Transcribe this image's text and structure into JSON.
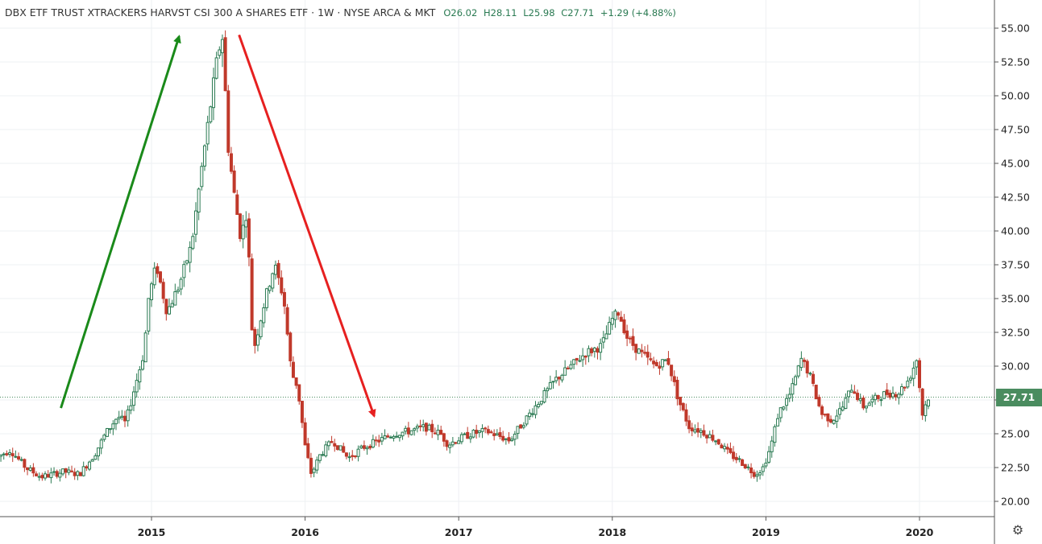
{
  "header": {
    "title": "DBX ETF TRUST XTRACKERS HARVST CSI 300 A SHARES ETF · 1W · NYSE ARCA & MKT",
    "open": "O26.02",
    "high": "H28.11",
    "low": "L25.98",
    "close": "C27.71",
    "change": "+1.29 (+4.88%)"
  },
  "last_price_label": "27.71",
  "settings_icon": "gear-icon",
  "colors": {
    "up": "#2a7a52",
    "down": "#c0392b",
    "up_arrow": "#1a8a1a",
    "down_arrow": "#e62020",
    "last_price": "#4a8c5f"
  },
  "chart_data": {
    "type": "candlestick",
    "interval": "1W",
    "ylim": [
      19,
      56
    ],
    "yticks": [
      "20.00",
      "22.50",
      "25.00",
      "27.50",
      "30.00",
      "32.50",
      "35.00",
      "37.50",
      "40.00",
      "42.50",
      "45.00",
      "47.50",
      "50.00",
      "52.50",
      "55.00"
    ],
    "xlim": [
      2014.0,
      2020.5
    ],
    "xticks": [
      "2015",
      "2016",
      "2017",
      "2018",
      "2019",
      "2020"
    ],
    "last_price": 27.71,
    "grid": true,
    "keypoints": [
      [
        2014.0,
        23.2
      ],
      [
        2014.1,
        23.8
      ],
      [
        2014.2,
        22.5
      ],
      [
        2014.3,
        21.8
      ],
      [
        2014.45,
        22.2
      ],
      [
        2014.55,
        22.0
      ],
      [
        2014.65,
        23.5
      ],
      [
        2014.72,
        25.0
      ],
      [
        2014.8,
        26.3
      ],
      [
        2014.85,
        25.8
      ],
      [
        2014.9,
        28.0
      ],
      [
        2014.97,
        31.0
      ],
      [
        2015.0,
        35.0
      ],
      [
        2015.05,
        37.5
      ],
      [
        2015.12,
        34.0
      ],
      [
        2015.2,
        36.0
      ],
      [
        2015.28,
        39.0
      ],
      [
        2015.35,
        45.0
      ],
      [
        2015.4,
        49.0
      ],
      [
        2015.45,
        53.0
      ],
      [
        2015.48,
        54.5
      ],
      [
        2015.52,
        46.0
      ],
      [
        2015.56,
        42.5
      ],
      [
        2015.6,
        39.5
      ],
      [
        2015.64,
        41.5
      ],
      [
        2015.68,
        31.0
      ],
      [
        2015.72,
        33.0
      ],
      [
        2015.76,
        35.0
      ],
      [
        2015.82,
        37.5
      ],
      [
        2015.88,
        35.0
      ],
      [
        2015.93,
        29.5
      ],
      [
        2015.97,
        28.5
      ],
      [
        2016.02,
        24.0
      ],
      [
        2016.06,
        22.0
      ],
      [
        2016.12,
        23.5
      ],
      [
        2016.2,
        24.5
      ],
      [
        2016.3,
        23.2
      ],
      [
        2016.4,
        24.0
      ],
      [
        2016.5,
        24.5
      ],
      [
        2016.6,
        25.0
      ],
      [
        2016.7,
        25.2
      ],
      [
        2016.8,
        25.5
      ],
      [
        2016.9,
        25.0
      ],
      [
        2016.95,
        24.2
      ],
      [
        2017.0,
        24.5
      ],
      [
        2017.1,
        25.0
      ],
      [
        2017.2,
        25.2
      ],
      [
        2017.35,
        24.5
      ],
      [
        2017.45,
        26.0
      ],
      [
        2017.55,
        27.5
      ],
      [
        2017.65,
        29.0
      ],
      [
        2017.75,
        30.0
      ],
      [
        2017.85,
        31.0
      ],
      [
        2017.95,
        31.5
      ],
      [
        2018.02,
        33.5
      ],
      [
        2018.06,
        34.0
      ],
      [
        2018.12,
        32.0
      ],
      [
        2018.2,
        31.0
      ],
      [
        2018.3,
        30.0
      ],
      [
        2018.38,
        30.5
      ],
      [
        2018.45,
        27.5
      ],
      [
        2018.52,
        25.5
      ],
      [
        2018.6,
        25.2
      ],
      [
        2018.7,
        24.5
      ],
      [
        2018.78,
        23.5
      ],
      [
        2018.85,
        23.0
      ],
      [
        2018.95,
        22.0
      ],
      [
        2019.0,
        22.5
      ],
      [
        2019.05,
        24.0
      ],
      [
        2019.1,
        26.5
      ],
      [
        2019.18,
        28.0
      ],
      [
        2019.25,
        30.5
      ],
      [
        2019.3,
        29.5
      ],
      [
        2019.38,
        26.5
      ],
      [
        2019.45,
        26.0
      ],
      [
        2019.52,
        27.0
      ],
      [
        2019.58,
        28.5
      ],
      [
        2019.65,
        27.0
      ],
      [
        2019.72,
        27.5
      ],
      [
        2019.8,
        28.0
      ],
      [
        2019.88,
        28.0
      ],
      [
        2019.95,
        29.0
      ],
      [
        2020.0,
        30.5
      ],
      [
        2020.04,
        26.3
      ],
      [
        2020.07,
        27.7
      ]
    ],
    "annotations": [
      {
        "type": "arrow",
        "color": "green",
        "from": [
          2014.41,
          26.9
        ],
        "to": [
          2015.18,
          54.4
        ]
      },
      {
        "type": "arrow",
        "color": "red",
        "from": [
          2015.57,
          54.5
        ],
        "to": [
          2016.45,
          26.3
        ]
      }
    ]
  }
}
